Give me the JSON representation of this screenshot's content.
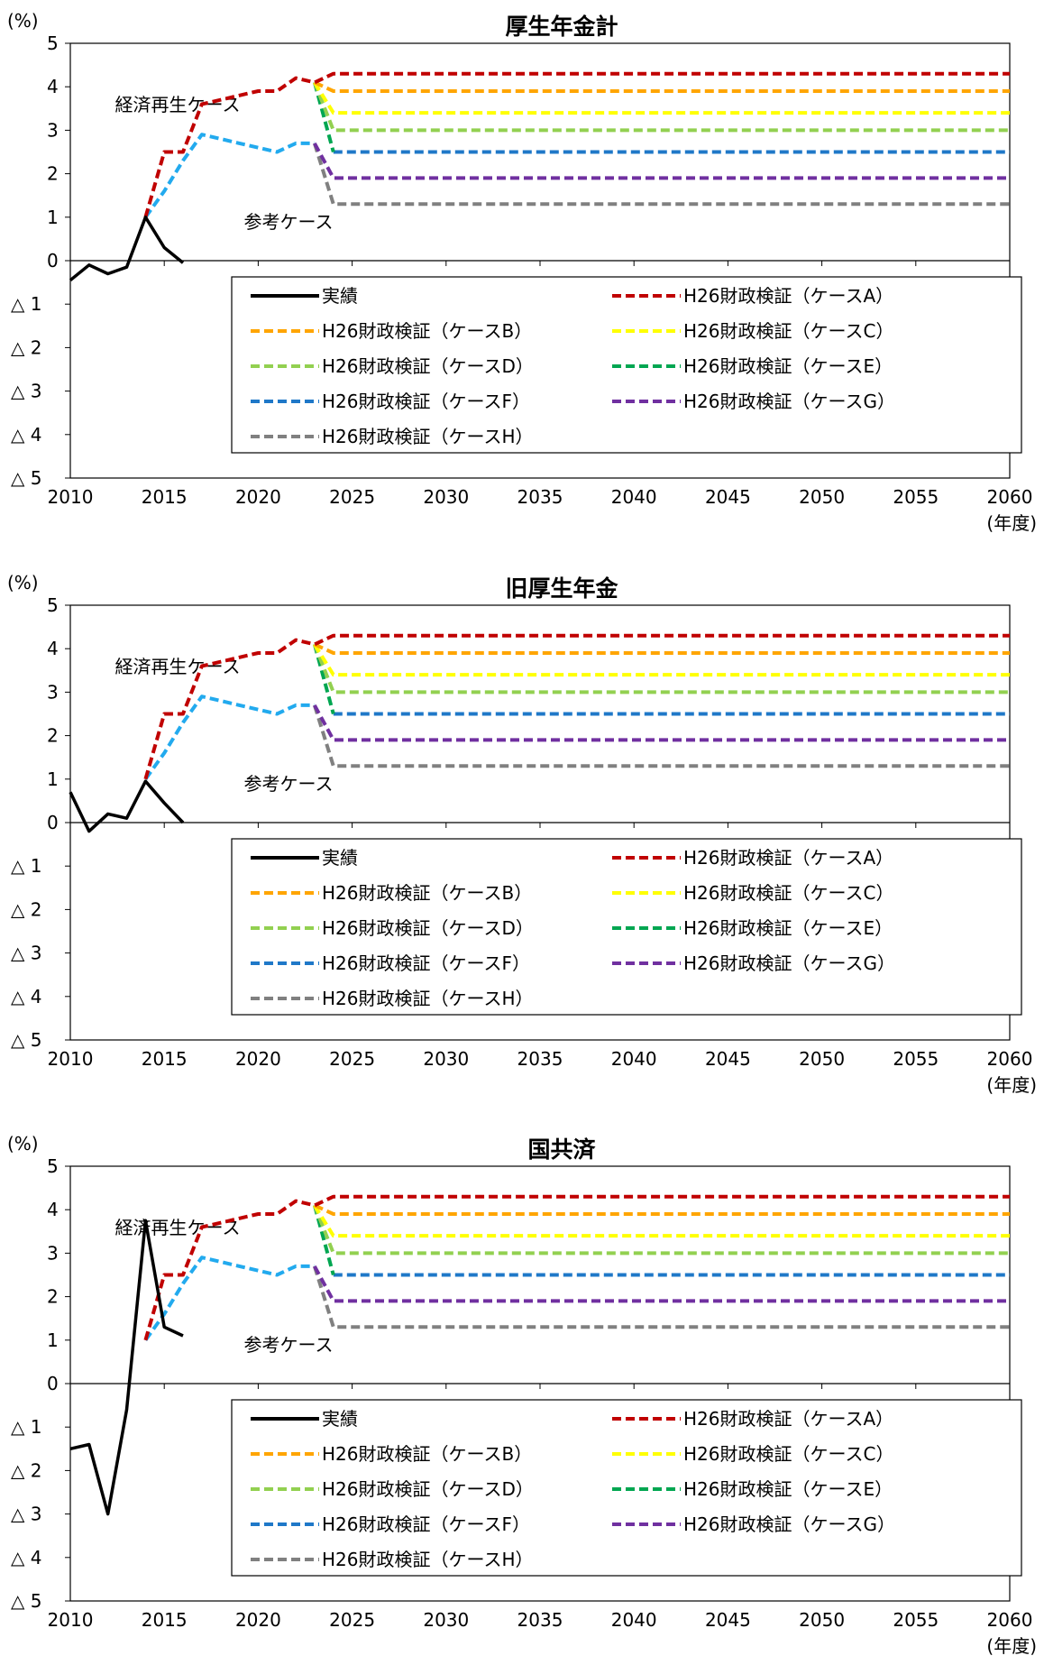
{
  "chart_data": [
    {
      "type": "line",
      "title": "厚生年金計",
      "y_unit": "(%)",
      "x_unit": "(年度)",
      "ylim": [
        -5,
        5
      ],
      "xlim": [
        2010,
        2060
      ],
      "yticks": [
        5,
        4,
        3,
        2,
        1,
        0,
        -1,
        -2,
        -3,
        -4,
        -5
      ],
      "ytick_labels": [
        "5",
        "4",
        "3",
        "2",
        "1",
        "0",
        "△ 1",
        "△ 2",
        "△ 3",
        "△ 4",
        "△ 5"
      ],
      "xticks": [
        2010,
        2015,
        2020,
        2025,
        2030,
        2035,
        2040,
        2045,
        2050,
        2055,
        2060
      ],
      "annotations": [
        "経済再生ケース",
        "参考ケース"
      ],
      "legend_position": "lower-center",
      "series": [
        {
          "name": "実績",
          "color": "#000000",
          "dash": "solid",
          "x": [
            2010,
            2011,
            2012,
            2013,
            2014,
            2015,
            2016
          ],
          "y": [
            -0.45,
            -0.1,
            -0.3,
            -0.15,
            1.0,
            0.3,
            -0.05
          ]
        },
        {
          "name": "H26財政検証（ケースA）",
          "color": "#c00000",
          "dash": "dashed",
          "x": [
            2014,
            2015,
            2016,
            2017,
            2018,
            2019,
            2020,
            2021,
            2022,
            2023,
            2024,
            2060
          ],
          "y": [
            1.0,
            2.5,
            2.5,
            3.6,
            3.7,
            3.8,
            3.9,
            3.9,
            4.2,
            4.1,
            4.3,
            4.3
          ]
        },
        {
          "name": "H26財政検証（ケースB）",
          "color": "#ffa500",
          "dash": "dashed",
          "x": [
            2023,
            2024,
            2060
          ],
          "y": [
            4.1,
            3.9,
            3.9
          ]
        },
        {
          "name": "H26財政検証（ケースC）",
          "color": "#ffff00",
          "dash": "dashed",
          "x": [
            2023,
            2024,
            2060
          ],
          "y": [
            4.1,
            3.4,
            3.4
          ]
        },
        {
          "name": "H26財政検証（ケースD）",
          "color": "#92d050",
          "dash": "dashed",
          "x": [
            2023,
            2024,
            2060
          ],
          "y": [
            4.1,
            3.0,
            3.0
          ]
        },
        {
          "name": "H26財政検証（ケースE）",
          "color": "#00a651",
          "dash": "dashed",
          "x": [
            2023,
            2024
          ],
          "y": [
            4.1,
            2.5
          ]
        },
        {
          "name": "H26財政検証（ケースF）",
          "color": "#1f78c8",
          "dash": "dashed",
          "x": [
            2024,
            2060
          ],
          "y": [
            2.5,
            2.5
          ]
        },
        {
          "name": "H26財政検証（ケースG）",
          "color": "#7030a0",
          "dash": "dashed",
          "x": [
            2023,
            2024,
            2060
          ],
          "y": [
            2.7,
            1.9,
            1.9
          ]
        },
        {
          "name": "H26財政検証（ケースH）",
          "color": "#808080",
          "dash": "dashed",
          "x": [
            2023,
            2024,
            2060
          ],
          "y": [
            2.7,
            1.3,
            1.3
          ]
        },
        {
          "name": "参考ケース",
          "color": "#22aaee",
          "dash": "dashed",
          "x": [
            2014,
            2015,
            2016,
            2017,
            2018,
            2019,
            2020,
            2021,
            2022,
            2023
          ],
          "y": [
            1.0,
            1.6,
            2.3,
            2.9,
            2.8,
            2.7,
            2.6,
            2.5,
            2.7,
            2.7
          ]
        }
      ]
    },
    {
      "type": "line",
      "title": "旧厚生年金",
      "y_unit": "(%)",
      "x_unit": "(年度)",
      "ylim": [
        -5,
        5
      ],
      "xlim": [
        2010,
        2060
      ],
      "yticks": [
        5,
        4,
        3,
        2,
        1,
        0,
        -1,
        -2,
        -3,
        -4,
        -5
      ],
      "ytick_labels": [
        "5",
        "4",
        "3",
        "2",
        "1",
        "0",
        "△ 1",
        "△ 2",
        "△ 3",
        "△ 4",
        "△ 5"
      ],
      "xticks": [
        2010,
        2015,
        2020,
        2025,
        2030,
        2035,
        2040,
        2045,
        2050,
        2055,
        2060
      ],
      "annotations": [
        "経済再生ケース",
        "参考ケース"
      ],
      "legend_position": "lower-center",
      "series": [
        {
          "name": "実績",
          "color": "#000000",
          "dash": "solid",
          "x": [
            2010,
            2011,
            2012,
            2013,
            2014,
            2015,
            2016
          ],
          "y": [
            0.7,
            -0.2,
            0.2,
            0.1,
            0.95,
            0.45,
            0.0
          ]
        },
        {
          "name": "H26財政検証（ケースA）",
          "color": "#c00000",
          "dash": "dashed",
          "x": [
            2014,
            2015,
            2016,
            2017,
            2018,
            2019,
            2020,
            2021,
            2022,
            2023,
            2024,
            2060
          ],
          "y": [
            1.0,
            2.5,
            2.5,
            3.6,
            3.7,
            3.8,
            3.9,
            3.9,
            4.2,
            4.1,
            4.3,
            4.3
          ]
        },
        {
          "name": "H26財政検証（ケースB）",
          "color": "#ffa500",
          "dash": "dashed",
          "x": [
            2023,
            2024,
            2060
          ],
          "y": [
            4.1,
            3.9,
            3.9
          ]
        },
        {
          "name": "H26財政検証（ケースC）",
          "color": "#ffff00",
          "dash": "dashed",
          "x": [
            2023,
            2024,
            2060
          ],
          "y": [
            4.1,
            3.4,
            3.4
          ]
        },
        {
          "name": "H26財政検証（ケースD）",
          "color": "#92d050",
          "dash": "dashed",
          "x": [
            2023,
            2024,
            2060
          ],
          "y": [
            4.1,
            3.0,
            3.0
          ]
        },
        {
          "name": "H26財政検証（ケースE）",
          "color": "#00a651",
          "dash": "dashed",
          "x": [
            2023,
            2024
          ],
          "y": [
            4.1,
            2.5
          ]
        },
        {
          "name": "H26財政検証（ケースF）",
          "color": "#1f78c8",
          "dash": "dashed",
          "x": [
            2024,
            2060
          ],
          "y": [
            2.5,
            2.5
          ]
        },
        {
          "name": "H26財政検証（ケースG）",
          "color": "#7030a0",
          "dash": "dashed",
          "x": [
            2023,
            2024,
            2060
          ],
          "y": [
            2.7,
            1.9,
            1.9
          ]
        },
        {
          "name": "H26財政検証（ケースH）",
          "color": "#808080",
          "dash": "dashed",
          "x": [
            2023,
            2024,
            2060
          ],
          "y": [
            2.7,
            1.3,
            1.3
          ]
        },
        {
          "name": "参考ケース",
          "color": "#22aaee",
          "dash": "dashed",
          "x": [
            2014,
            2015,
            2016,
            2017,
            2018,
            2019,
            2020,
            2021,
            2022,
            2023
          ],
          "y": [
            1.0,
            1.6,
            2.3,
            2.9,
            2.8,
            2.7,
            2.6,
            2.5,
            2.7,
            2.7
          ]
        }
      ]
    },
    {
      "type": "line",
      "title": "国共済",
      "y_unit": "(%)",
      "x_unit": "(年度)",
      "ylim": [
        -5,
        5
      ],
      "xlim": [
        2010,
        2060
      ],
      "yticks": [
        5,
        4,
        3,
        2,
        1,
        0,
        -1,
        -2,
        -3,
        -4,
        -5
      ],
      "ytick_labels": [
        "5",
        "4",
        "3",
        "2",
        "1",
        "0",
        "△ 1",
        "△ 2",
        "△ 3",
        "△ 4",
        "△ 5"
      ],
      "xticks": [
        2010,
        2015,
        2020,
        2025,
        2030,
        2035,
        2040,
        2045,
        2050,
        2055,
        2060
      ],
      "annotations": [
        "経済再生ケース",
        "参考ケース"
      ],
      "legend_position": "lower-center",
      "series": [
        {
          "name": "実績",
          "color": "#000000",
          "dash": "solid",
          "x": [
            2010,
            2011,
            2012,
            2013,
            2014,
            2015,
            2016
          ],
          "y": [
            -1.5,
            -1.4,
            -3.0,
            -0.6,
            3.75,
            1.3,
            1.1
          ]
        },
        {
          "name": "H26財政検証（ケースA）",
          "color": "#c00000",
          "dash": "dashed",
          "x": [
            2014,
            2015,
            2016,
            2017,
            2018,
            2019,
            2020,
            2021,
            2022,
            2023,
            2024,
            2060
          ],
          "y": [
            1.0,
            2.5,
            2.5,
            3.6,
            3.7,
            3.8,
            3.9,
            3.9,
            4.2,
            4.1,
            4.3,
            4.3
          ]
        },
        {
          "name": "H26財政検証（ケースB）",
          "color": "#ffa500",
          "dash": "dashed",
          "x": [
            2023,
            2024,
            2060
          ],
          "y": [
            4.1,
            3.9,
            3.9
          ]
        },
        {
          "name": "H26財政検証（ケースC）",
          "color": "#ffff00",
          "dash": "dashed",
          "x": [
            2023,
            2024,
            2060
          ],
          "y": [
            4.1,
            3.4,
            3.4
          ]
        },
        {
          "name": "H26財政検証（ケースD）",
          "color": "#92d050",
          "dash": "dashed",
          "x": [
            2023,
            2024,
            2060
          ],
          "y": [
            4.1,
            3.0,
            3.0
          ]
        },
        {
          "name": "H26財政検証（ケースE）",
          "color": "#00a651",
          "dash": "dashed",
          "x": [
            2023,
            2024
          ],
          "y": [
            4.1,
            2.5
          ]
        },
        {
          "name": "H26財政検証（ケースF）",
          "color": "#1f78c8",
          "dash": "dashed",
          "x": [
            2024,
            2060
          ],
          "y": [
            2.5,
            2.5
          ]
        },
        {
          "name": "H26財政検証（ケースG）",
          "color": "#7030a0",
          "dash": "dashed",
          "x": [
            2023,
            2024,
            2060
          ],
          "y": [
            2.7,
            1.9,
            1.9
          ]
        },
        {
          "name": "H26財政検証（ケースH）",
          "color": "#808080",
          "dash": "dashed",
          "x": [
            2023,
            2024,
            2060
          ],
          "y": [
            2.7,
            1.3,
            1.3
          ]
        },
        {
          "name": "参考ケース",
          "color": "#22aaee",
          "dash": "dashed",
          "x": [
            2014,
            2015,
            2016,
            2017,
            2018,
            2019,
            2020,
            2021,
            2022,
            2023
          ],
          "y": [
            1.0,
            1.6,
            2.3,
            2.9,
            2.8,
            2.7,
            2.6,
            2.5,
            2.7,
            2.7
          ]
        }
      ]
    }
  ]
}
